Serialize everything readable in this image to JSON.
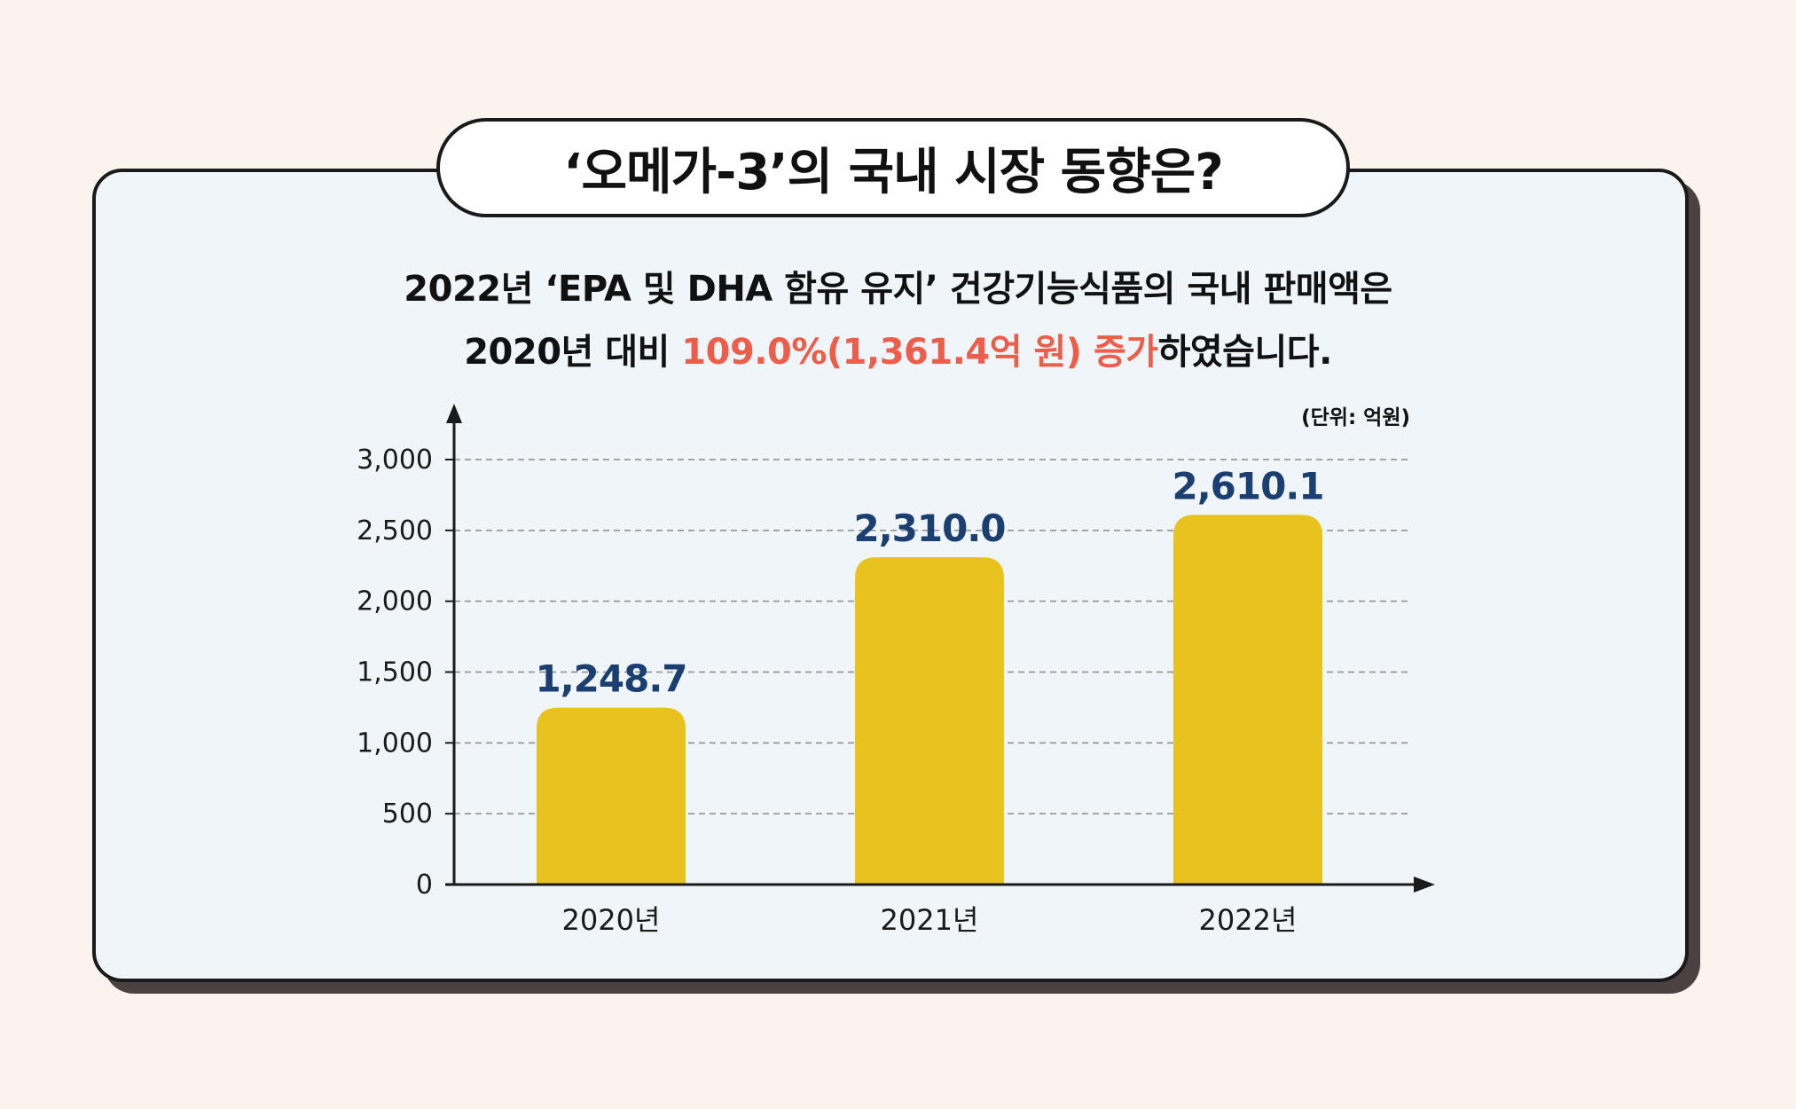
{
  "header": {
    "title": "‘오메가-3’의 국내 시장 동향은?"
  },
  "summary": {
    "line1": "2022년 ‘EPA 및 DHA 함유 유지’ 건강기능식품의 국내 판매액은",
    "line2_pre": "2020년 대비 ",
    "line2_highlight": "109.0%(1,361.4억 원) 증가",
    "line2_post": "하였습니다."
  },
  "colors": {
    "bar": "#e8c21f",
    "value_label": "#1c3f72",
    "highlight": "#ec5e4a",
    "axis": "#1a1a1a",
    "grid": "#8a8a8a",
    "card_bg": "#f0f5fa",
    "page_bg": "#fbf3ee"
  },
  "chart_data": {
    "type": "bar",
    "title": "",
    "xlabel": "",
    "ylabel": "",
    "unit_label": "(단위: 억원)",
    "categories": [
      "2020년",
      "2021년",
      "2022년"
    ],
    "values": [
      1248.7,
      2310.0,
      2610.1
    ],
    "value_labels": [
      "1,248.7",
      "2,310.0",
      "2,610.1"
    ],
    "ylim": [
      0,
      3000
    ],
    "yticks": [
      0,
      500,
      1000,
      1500,
      2000,
      2500,
      3000
    ],
    "ytick_labels": [
      "0",
      "500",
      "1,000",
      "1,500",
      "2,000",
      "2,500",
      "3,000"
    ],
    "grid": true,
    "grid_style": "dashed"
  }
}
